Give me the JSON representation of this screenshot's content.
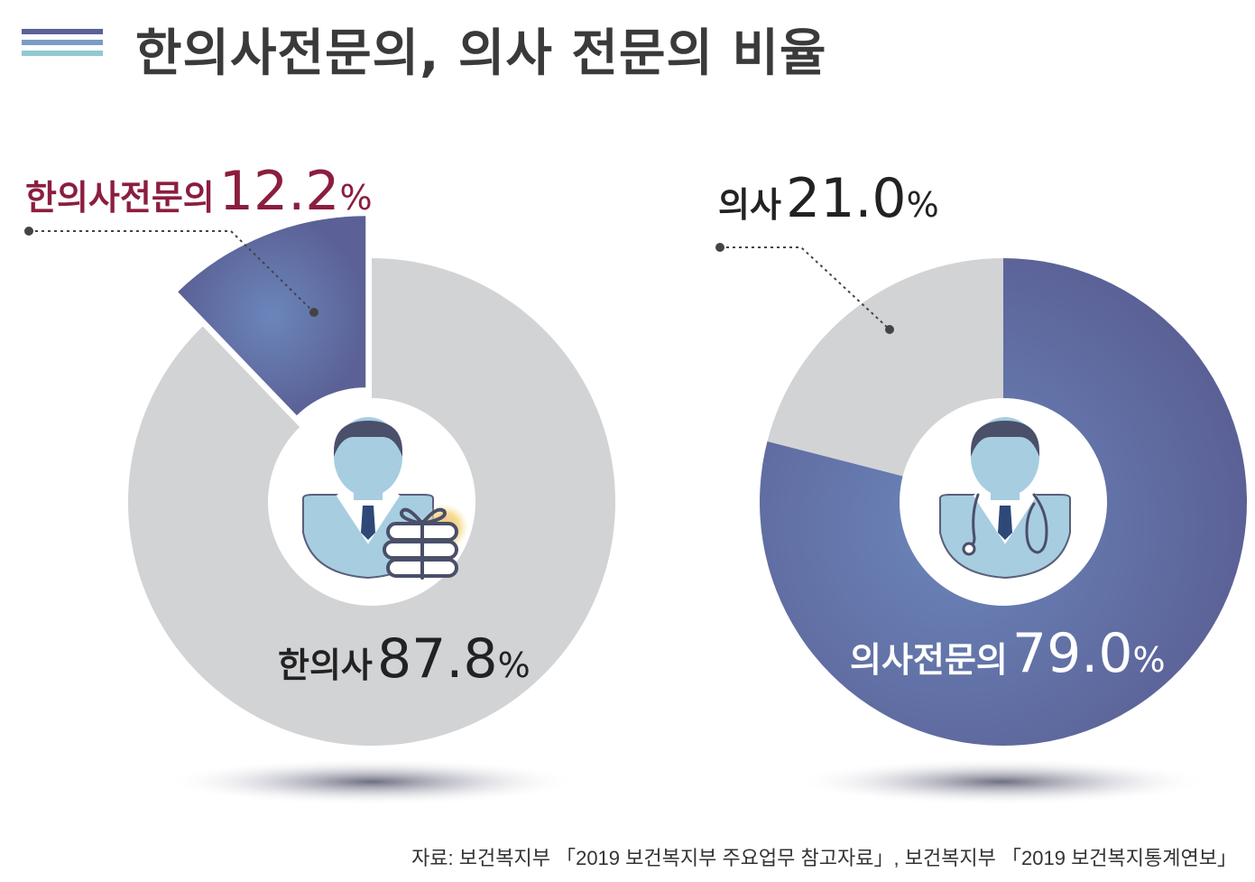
{
  "title": "한의사전문의, 의사 전문의 비율",
  "source": "자료: 보건복지부 「2019 보건복지부 주요업무 참고자료」, 보건복지부 「2019 보건복지통계연보」",
  "colors": {
    "highlight_segment": "#5b6196",
    "highlight_center": "#6b86bb",
    "base_segment": "#d2d3d5",
    "title_lines": [
      "#5b6196",
      "#7a9cc5",
      "#8fcad0"
    ],
    "label_red": "#8b1e3f",
    "label_dark": "#222222",
    "label_white": "#ffffff"
  },
  "icons": {
    "left": "korean-medicine-doctor-icon",
    "right": "doctor-stethoscope-icon"
  },
  "labels": {
    "left_specialist": {
      "name": "한의사전문의",
      "value": "12.2",
      "unit": "%"
    },
    "left_general": {
      "name": "한의사",
      "value": "87.8",
      "unit": "%"
    },
    "right_general": {
      "name": "의사",
      "value": "21.0",
      "unit": "%"
    },
    "right_specialist": {
      "name": "의사전문의",
      "value": "79.0",
      "unit": "%"
    }
  },
  "chart_data": [
    {
      "type": "pie",
      "categories": [
        "한의사전문의",
        "한의사"
      ],
      "values": [
        12.2,
        87.8
      ],
      "unit": "%"
    },
    {
      "type": "pie",
      "categories": [
        "의사전문의",
        "의사"
      ],
      "values": [
        79.0,
        21.0
      ],
      "unit": "%"
    }
  ]
}
